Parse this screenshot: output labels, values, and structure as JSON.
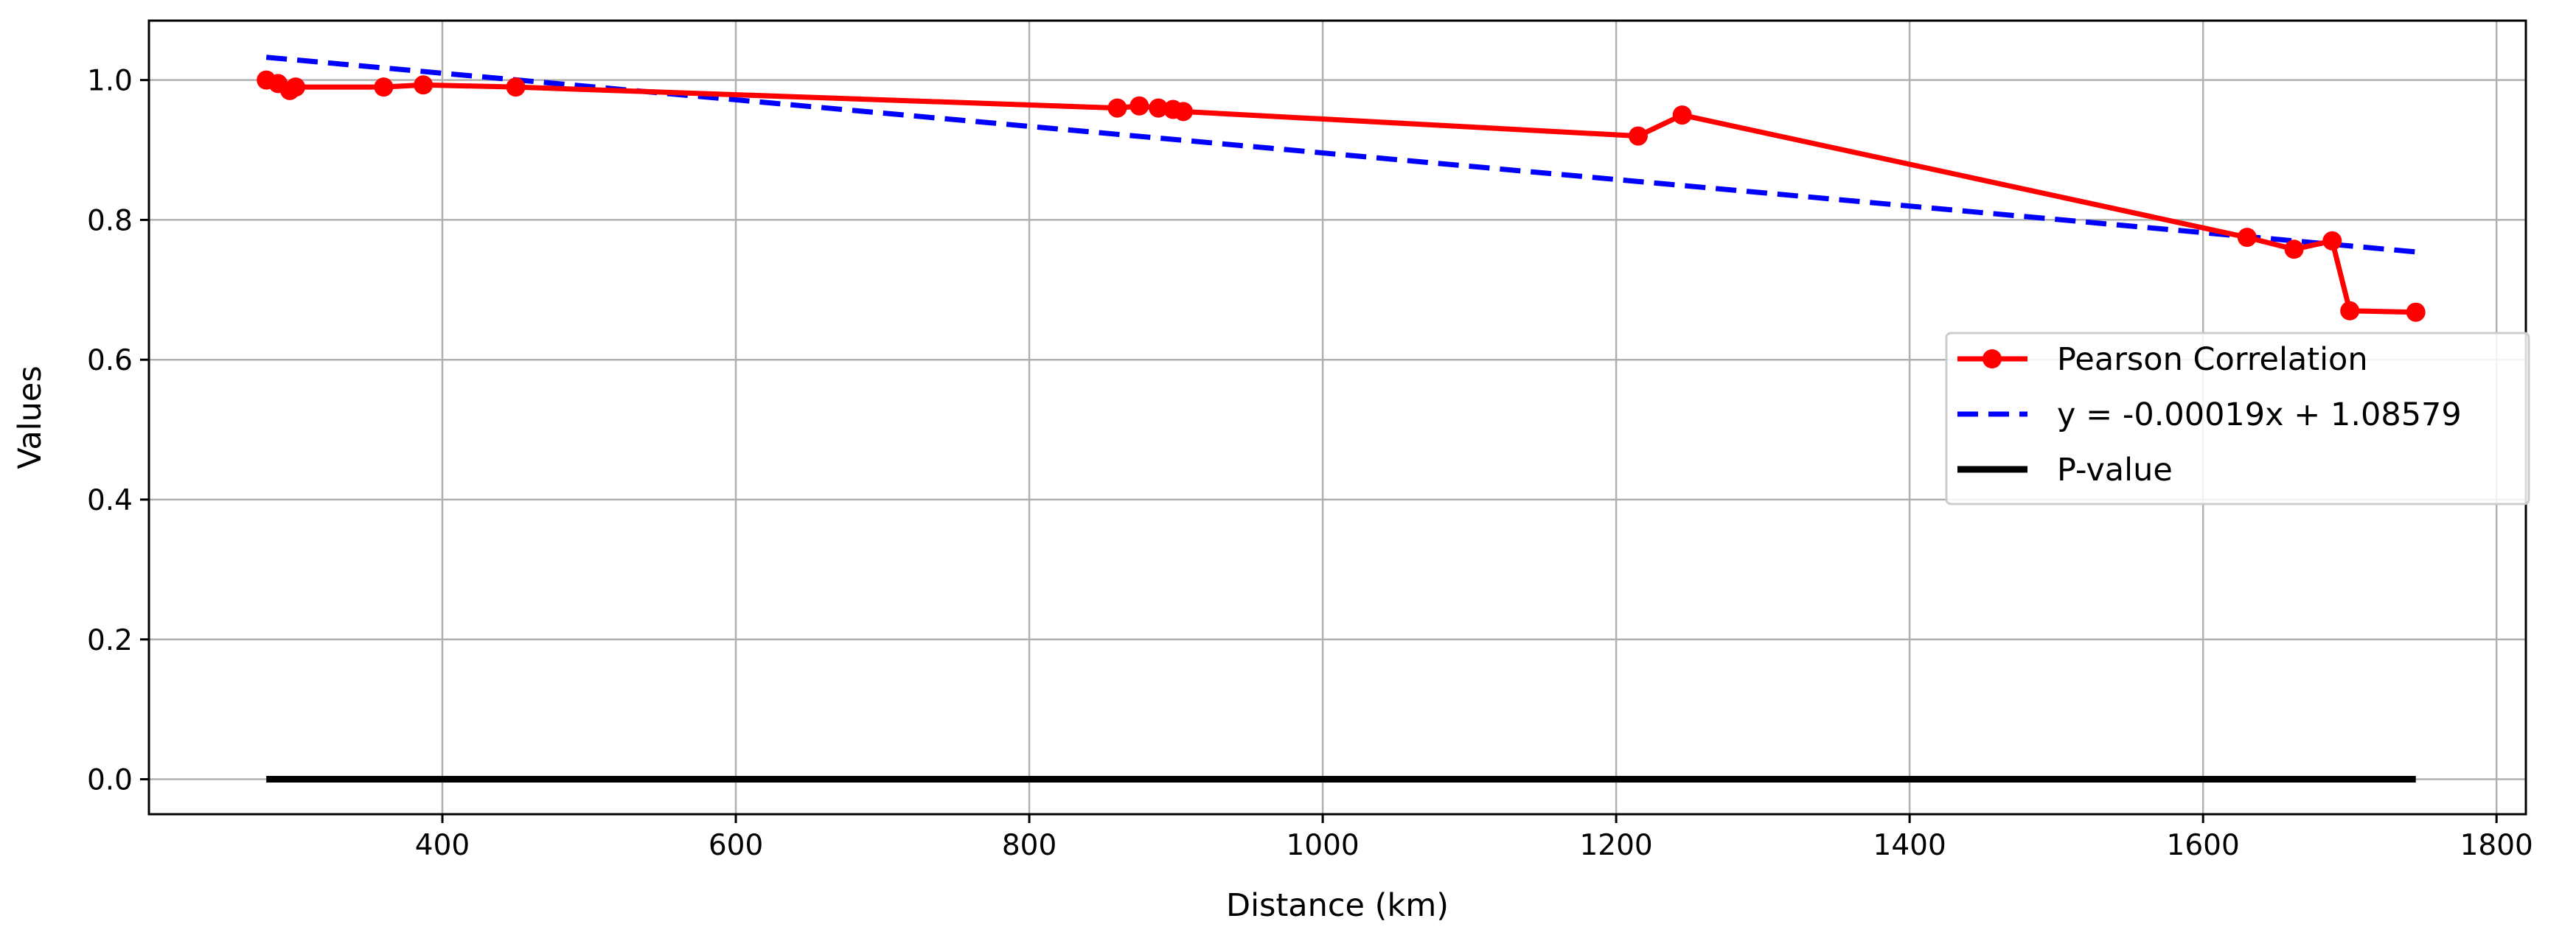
{
  "chart_data": {
    "type": "line",
    "title": "",
    "xlabel": "Distance (km)",
    "ylabel": "Values",
    "xlim": [
      200,
      1820
    ],
    "ylim": [
      -0.05,
      1.085
    ],
    "x_ticks": [
      400,
      600,
      800,
      1000,
      1200,
      1400,
      1600,
      1800
    ],
    "y_ticks": [
      0.0,
      0.2,
      0.4,
      0.6,
      0.8,
      1.0
    ],
    "x_tick_labels": [
      "400",
      "600",
      "800",
      "1000",
      "1200",
      "1400",
      "1600",
      "1800"
    ],
    "y_tick_labels": [
      "0.0",
      "0.2",
      "0.4",
      "0.6",
      "0.8",
      "1.0"
    ],
    "grid": true,
    "legend_position": "center-right",
    "series": [
      {
        "name": "Pearson Correlation",
        "style": "solid-line-with-circle-markers",
        "color": "#ff0000",
        "x": [
          280,
          288,
          296,
          300,
          360,
          387,
          450,
          860,
          875,
          888,
          898,
          905,
          1215,
          1245,
          1630,
          1662,
          1688,
          1700,
          1745
        ],
        "y": [
          1.0,
          0.995,
          0.985,
          0.99,
          0.99,
          0.993,
          0.99,
          0.96,
          0.963,
          0.96,
          0.958,
          0.955,
          0.92,
          0.95,
          0.775,
          0.758,
          0.77,
          0.67,
          0.668
        ]
      },
      {
        "name": "y = -0.00019x + 1.08579",
        "style": "dashed-line",
        "color": "#0000ff",
        "slope": -0.00019,
        "intercept": 1.08579,
        "x": [
          280,
          1745
        ],
        "y": [
          1.03259,
          0.75424
        ]
      },
      {
        "name": "P-value",
        "style": "solid-line",
        "color": "#000000",
        "x": [
          280,
          1745
        ],
        "y": [
          0.0,
          0.0
        ]
      }
    ]
  }
}
